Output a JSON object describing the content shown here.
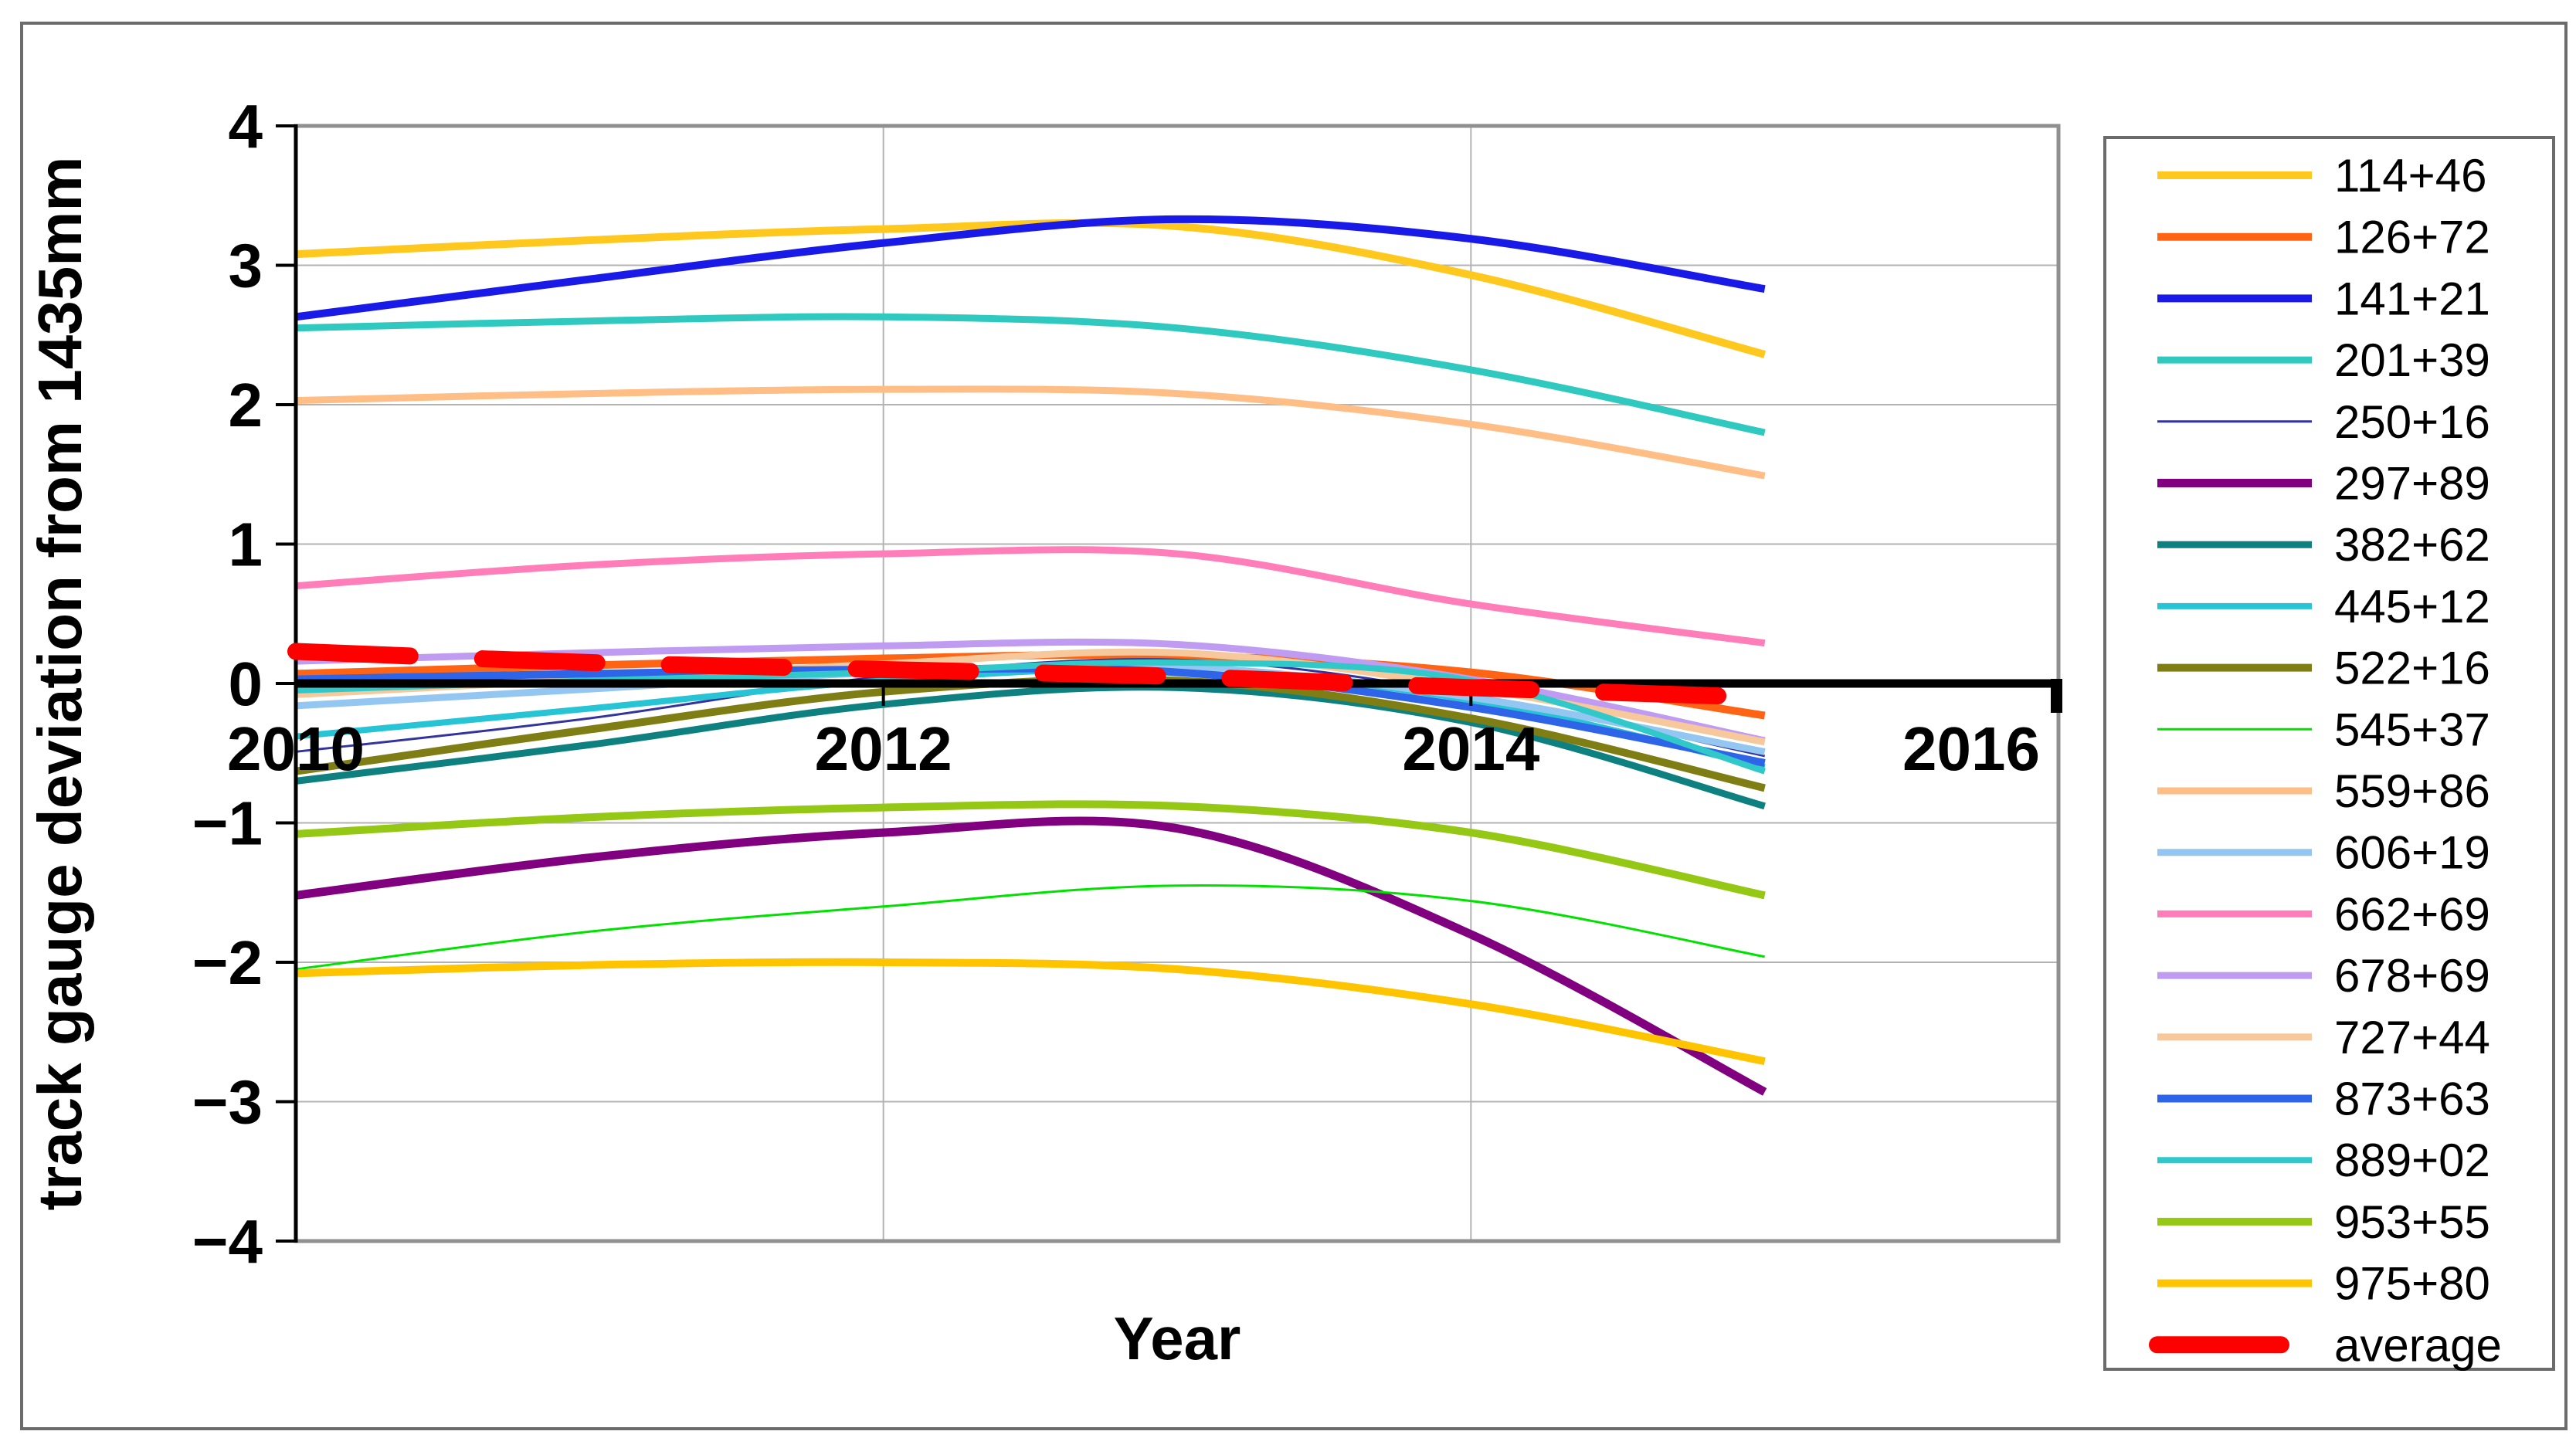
{
  "chart_data": {
    "type": "line",
    "title": "",
    "xlabel": "Year",
    "ylabel": "track gauge deviation from 1435mm",
    "x": [
      2010,
      2011,
      2012,
      2013,
      2014,
      2015
    ],
    "xlim": [
      2010,
      2016
    ],
    "ylim": [
      -4,
      4
    ],
    "x_tick_labels": [
      "2010",
      "2012",
      "2014",
      "2016"
    ],
    "x_tick_years": [
      2010,
      2012,
      2014,
      2016
    ],
    "y_tick_values": [
      4,
      3,
      2,
      1,
      0,
      -1,
      -2,
      -3,
      -4
    ],
    "y_tick_labels": [
      "4",
      "3",
      "2",
      "1",
      "0",
      "−1",
      "−2",
      "−3",
      "−4"
    ],
    "grid": true,
    "legend_position": "right",
    "series": [
      {
        "name": "114+46",
        "color": "#FFC81E",
        "width": 10,
        "dashed": false,
        "values": [
          3.08,
          3.18,
          3.26,
          3.28,
          2.93,
          2.36
        ]
      },
      {
        "name": "126+72",
        "color": "#FF6414",
        "width": 10,
        "dashed": false,
        "values": [
          0.07,
          0.13,
          0.18,
          0.2,
          0.08,
          -0.23
        ]
      },
      {
        "name": "141+21",
        "color": "#1A1AE8",
        "width": 10,
        "dashed": false,
        "values": [
          2.63,
          2.9,
          3.16,
          3.33,
          3.19,
          2.83
        ]
      },
      {
        "name": "201+39",
        "color": "#2FC9C0",
        "width": 9,
        "dashed": false,
        "values": [
          2.55,
          2.6,
          2.63,
          2.55,
          2.25,
          1.8
        ]
      },
      {
        "name": "250+16",
        "color": "#33339E",
        "width": 3,
        "dashed": false,
        "values": [
          -0.49,
          -0.25,
          0.05,
          0.17,
          -0.08,
          -0.52
        ]
      },
      {
        "name": "297+89",
        "color": "#800080",
        "width": 11,
        "dashed": false,
        "values": [
          -1.52,
          -1.25,
          -1.07,
          -1.04,
          -1.8,
          -2.93
        ]
      },
      {
        "name": "382+62",
        "color": "#0E8080",
        "width": 9,
        "dashed": false,
        "values": [
          -0.7,
          -0.44,
          -0.15,
          -0.03,
          -0.28,
          -0.88
        ]
      },
      {
        "name": "445+12",
        "color": "#26C4D4",
        "width": 8,
        "dashed": false,
        "values": [
          -0.38,
          -0.18,
          0.02,
          0.1,
          -0.12,
          -0.6
        ]
      },
      {
        "name": "522+16",
        "color": "#7E7E14",
        "width": 10,
        "dashed": false,
        "values": [
          -0.63,
          -0.33,
          -0.06,
          0.02,
          -0.25,
          -0.75
        ]
      },
      {
        "name": "545+37",
        "color": "#00E100",
        "width": 3,
        "dashed": false,
        "values": [
          -2.05,
          -1.78,
          -1.6,
          -1.45,
          -1.56,
          -1.96
        ]
      },
      {
        "name": "559+86",
        "color": "#FFBE85",
        "width": 9,
        "dashed": false,
        "values": [
          2.03,
          2.08,
          2.11,
          2.08,
          1.86,
          1.49
        ]
      },
      {
        "name": "606+19",
        "color": "#94C6F2",
        "width": 9,
        "dashed": false,
        "values": [
          -0.16,
          -0.04,
          0.08,
          0.12,
          -0.1,
          -0.49
        ]
      },
      {
        "name": "662+69",
        "color": "#FF7EB9",
        "width": 9,
        "dashed": false,
        "values": [
          0.7,
          0.85,
          0.93,
          0.93,
          0.57,
          0.29
        ]
      },
      {
        "name": "678+69",
        "color": "#BF9BF2",
        "width": 9,
        "dashed": false,
        "values": [
          0.16,
          0.22,
          0.27,
          0.28,
          0.03,
          -0.41
        ]
      },
      {
        "name": "727+44",
        "color": "#F6C89B",
        "width": 9,
        "dashed": false,
        "values": [
          -0.08,
          0.03,
          0.14,
          0.22,
          -0.03,
          -0.42
        ]
      },
      {
        "name": "873+63",
        "color": "#2E64E8",
        "width": 10,
        "dashed": false,
        "values": [
          0.03,
          0.07,
          0.1,
          0.08,
          -0.17,
          -0.57
        ]
      },
      {
        "name": "889+02",
        "color": "#30C8C8",
        "width": 8,
        "dashed": false,
        "values": [
          -0.05,
          0.02,
          0.08,
          0.15,
          0.02,
          -0.63
        ]
      },
      {
        "name": "953+55",
        "color": "#94C814",
        "width": 10,
        "dashed": false,
        "values": [
          -1.08,
          -0.96,
          -0.89,
          -0.88,
          -1.07,
          -1.52
        ]
      },
      {
        "name": "975+80",
        "color": "#FFC400",
        "width": 10,
        "dashed": false,
        "values": [
          -2.08,
          -2.02,
          -2.0,
          -2.05,
          -2.3,
          -2.71
        ]
      },
      {
        "name": "average",
        "color": "#FF0000",
        "width": 22,
        "dashed": true,
        "values": [
          0.23,
          0.15,
          0.1,
          0.05,
          -0.03,
          -0.1
        ]
      }
    ]
  },
  "colors": {
    "background": "#FFFFFF",
    "frame": "#6B6B6B",
    "plot_border": "#909090",
    "gridline": "#B3B3B3",
    "axis": "#000000"
  }
}
